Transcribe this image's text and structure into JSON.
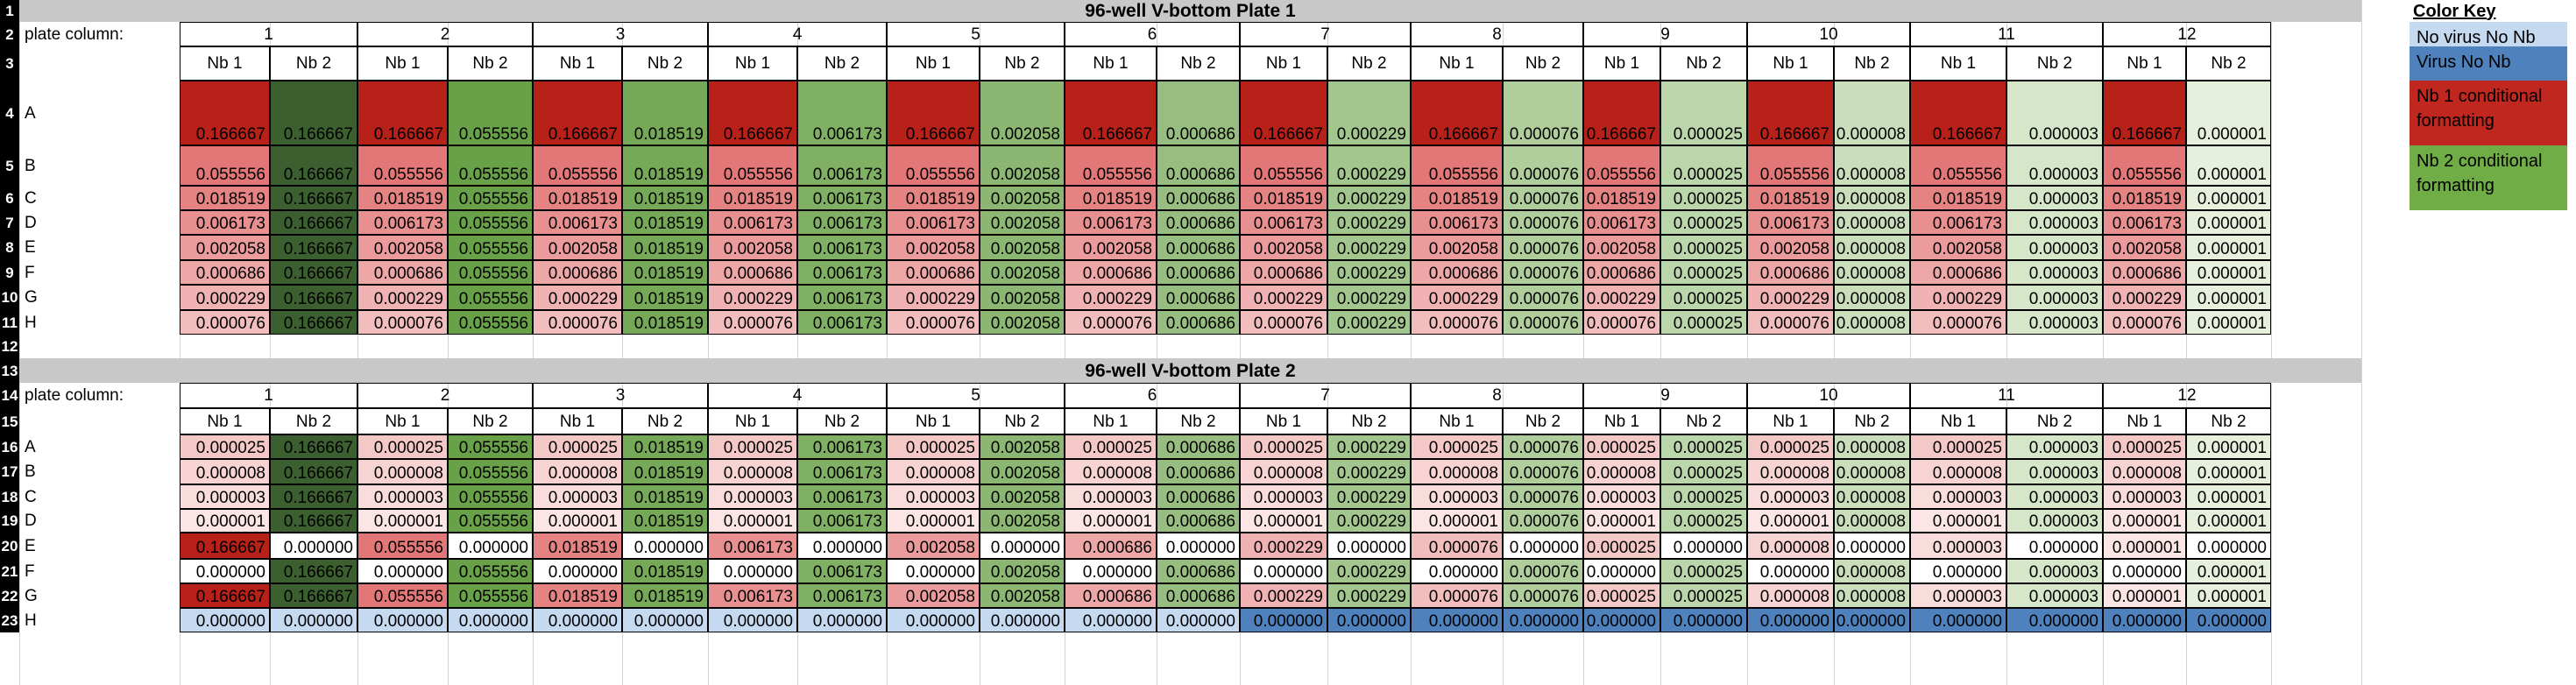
{
  "row_numbers": [
    "1",
    "2",
    "3",
    "4",
    "5",
    "6",
    "7",
    "8",
    "9",
    "10",
    "11",
    "12",
    "13",
    "14",
    "15",
    "16",
    "17",
    "18",
    "19",
    "20",
    "21",
    "22",
    "23"
  ],
  "plate_column_label": "plate column:",
  "column_numbers": [
    "1",
    "2",
    "3",
    "4",
    "5",
    "6",
    "7",
    "8",
    "9",
    "10",
    "11",
    "12"
  ],
  "subcols": [
    "Nb 1",
    "Nb 2"
  ],
  "key": {
    "title": "Color Key",
    "items": [
      {
        "label": "No virus No Nb",
        "color": "#c5d9f1"
      },
      {
        "label": "Virus No Nb",
        "color": "#4f81bd"
      },
      {
        "label": "Nb 1 conditional formatting",
        "color": "#c0271f"
      },
      {
        "label": "Nb 2 conditional formatting",
        "color": "#70ad47"
      }
    ]
  },
  "plates": [
    {
      "title": "96-well V-bottom Plate 1",
      "rows": [
        {
          "label": "A",
          "cells": [
            [
              "0.166667",
              "0.166667"
            ],
            [
              "0.166667",
              "0.055556"
            ],
            [
              "0.166667",
              "0.018519"
            ],
            [
              "0.166667",
              "0.006173"
            ],
            [
              "0.166667",
              "0.002058"
            ],
            [
              "0.166667",
              "0.000686"
            ],
            [
              "0.166667",
              "0.000229"
            ],
            [
              "0.166667",
              "0.000076"
            ],
            [
              "0.166667",
              "0.000025"
            ],
            [
              "0.166667",
              "0.000008"
            ],
            [
              "0.166667",
              "0.000003"
            ],
            [
              "0.166667",
              "0.000001"
            ]
          ]
        },
        {
          "label": "B",
          "cells": [
            [
              "0.055556",
              "0.166667"
            ],
            [
              "0.055556",
              "0.055556"
            ],
            [
              "0.055556",
              "0.018519"
            ],
            [
              "0.055556",
              "0.006173"
            ],
            [
              "0.055556",
              "0.002058"
            ],
            [
              "0.055556",
              "0.000686"
            ],
            [
              "0.055556",
              "0.000229"
            ],
            [
              "0.055556",
              "0.000076"
            ],
            [
              "0.055556",
              "0.000025"
            ],
            [
              "0.055556",
              "0.000008"
            ],
            [
              "0.055556",
              "0.000003"
            ],
            [
              "0.055556",
              "0.000001"
            ]
          ]
        },
        {
          "label": "C",
          "cells": [
            [
              "0.018519",
              "0.166667"
            ],
            [
              "0.018519",
              "0.055556"
            ],
            [
              "0.018519",
              "0.018519"
            ],
            [
              "0.018519",
              "0.006173"
            ],
            [
              "0.018519",
              "0.002058"
            ],
            [
              "0.018519",
              "0.000686"
            ],
            [
              "0.018519",
              "0.000229"
            ],
            [
              "0.018519",
              "0.000076"
            ],
            [
              "0.018519",
              "0.000025"
            ],
            [
              "0.018519",
              "0.000008"
            ],
            [
              "0.018519",
              "0.000003"
            ],
            [
              "0.018519",
              "0.000001"
            ]
          ]
        },
        {
          "label": "D",
          "cells": [
            [
              "0.006173",
              "0.166667"
            ],
            [
              "0.006173",
              "0.055556"
            ],
            [
              "0.006173",
              "0.018519"
            ],
            [
              "0.006173",
              "0.006173"
            ],
            [
              "0.006173",
              "0.002058"
            ],
            [
              "0.006173",
              "0.000686"
            ],
            [
              "0.006173",
              "0.000229"
            ],
            [
              "0.006173",
              "0.000076"
            ],
            [
              "0.006173",
              "0.000025"
            ],
            [
              "0.006173",
              "0.000008"
            ],
            [
              "0.006173",
              "0.000003"
            ],
            [
              "0.006173",
              "0.000001"
            ]
          ]
        },
        {
          "label": "E",
          "cells": [
            [
              "0.002058",
              "0.166667"
            ],
            [
              "0.002058",
              "0.055556"
            ],
            [
              "0.002058",
              "0.018519"
            ],
            [
              "0.002058",
              "0.006173"
            ],
            [
              "0.002058",
              "0.002058"
            ],
            [
              "0.002058",
              "0.000686"
            ],
            [
              "0.002058",
              "0.000229"
            ],
            [
              "0.002058",
              "0.000076"
            ],
            [
              "0.002058",
              "0.000025"
            ],
            [
              "0.002058",
              "0.000008"
            ],
            [
              "0.002058",
              "0.000003"
            ],
            [
              "0.002058",
              "0.000001"
            ]
          ]
        },
        {
          "label": "F",
          "cells": [
            [
              "0.000686",
              "0.166667"
            ],
            [
              "0.000686",
              "0.055556"
            ],
            [
              "0.000686",
              "0.018519"
            ],
            [
              "0.000686",
              "0.006173"
            ],
            [
              "0.000686",
              "0.002058"
            ],
            [
              "0.000686",
              "0.000686"
            ],
            [
              "0.000686",
              "0.000229"
            ],
            [
              "0.000686",
              "0.000076"
            ],
            [
              "0.000686",
              "0.000025"
            ],
            [
              "0.000686",
              "0.000008"
            ],
            [
              "0.000686",
              "0.000003"
            ],
            [
              "0.000686",
              "0.000001"
            ]
          ]
        },
        {
          "label": "G",
          "cells": [
            [
              "0.000229",
              "0.166667"
            ],
            [
              "0.000229",
              "0.055556"
            ],
            [
              "0.000229",
              "0.018519"
            ],
            [
              "0.000229",
              "0.006173"
            ],
            [
              "0.000229",
              "0.002058"
            ],
            [
              "0.000229",
              "0.000686"
            ],
            [
              "0.000229",
              "0.000229"
            ],
            [
              "0.000229",
              "0.000076"
            ],
            [
              "0.000229",
              "0.000025"
            ],
            [
              "0.000229",
              "0.000008"
            ],
            [
              "0.000229",
              "0.000003"
            ],
            [
              "0.000229",
              "0.000001"
            ]
          ]
        },
        {
          "label": "H",
          "cells": [
            [
              "0.000076",
              "0.166667"
            ],
            [
              "0.000076",
              "0.055556"
            ],
            [
              "0.000076",
              "0.018519"
            ],
            [
              "0.000076",
              "0.006173"
            ],
            [
              "0.000076",
              "0.002058"
            ],
            [
              "0.000076",
              "0.000686"
            ],
            [
              "0.000076",
              "0.000229"
            ],
            [
              "0.000076",
              "0.000076"
            ],
            [
              "0.000076",
              "0.000025"
            ],
            [
              "0.000076",
              "0.000008"
            ],
            [
              "0.000076",
              "0.000003"
            ],
            [
              "0.000076",
              "0.000001"
            ]
          ]
        }
      ]
    },
    {
      "title": "96-well V-bottom Plate 2",
      "rows": [
        {
          "label": "A",
          "cells": [
            [
              "0.000025",
              "0.166667"
            ],
            [
              "0.000025",
              "0.055556"
            ],
            [
              "0.000025",
              "0.018519"
            ],
            [
              "0.000025",
              "0.006173"
            ],
            [
              "0.000025",
              "0.002058"
            ],
            [
              "0.000025",
              "0.000686"
            ],
            [
              "0.000025",
              "0.000229"
            ],
            [
              "0.000025",
              "0.000076"
            ],
            [
              "0.000025",
              "0.000025"
            ],
            [
              "0.000025",
              "0.000008"
            ],
            [
              "0.000025",
              "0.000003"
            ],
            [
              "0.000025",
              "0.000001"
            ]
          ]
        },
        {
          "label": "B",
          "cells": [
            [
              "0.000008",
              "0.166667"
            ],
            [
              "0.000008",
              "0.055556"
            ],
            [
              "0.000008",
              "0.018519"
            ],
            [
              "0.000008",
              "0.006173"
            ],
            [
              "0.000008",
              "0.002058"
            ],
            [
              "0.000008",
              "0.000686"
            ],
            [
              "0.000008",
              "0.000229"
            ],
            [
              "0.000008",
              "0.000076"
            ],
            [
              "0.000008",
              "0.000025"
            ],
            [
              "0.000008",
              "0.000008"
            ],
            [
              "0.000008",
              "0.000003"
            ],
            [
              "0.000008",
              "0.000001"
            ]
          ]
        },
        {
          "label": "C",
          "cells": [
            [
              "0.000003",
              "0.166667"
            ],
            [
              "0.000003",
              "0.055556"
            ],
            [
              "0.000003",
              "0.018519"
            ],
            [
              "0.000003",
              "0.006173"
            ],
            [
              "0.000003",
              "0.002058"
            ],
            [
              "0.000003",
              "0.000686"
            ],
            [
              "0.000003",
              "0.000229"
            ],
            [
              "0.000003",
              "0.000076"
            ],
            [
              "0.000003",
              "0.000025"
            ],
            [
              "0.000003",
              "0.000008"
            ],
            [
              "0.000003",
              "0.000003"
            ],
            [
              "0.000003",
              "0.000001"
            ]
          ]
        },
        {
          "label": "D",
          "cells": [
            [
              "0.000001",
              "0.166667"
            ],
            [
              "0.000001",
              "0.055556"
            ],
            [
              "0.000001",
              "0.018519"
            ],
            [
              "0.000001",
              "0.006173"
            ],
            [
              "0.000001",
              "0.002058"
            ],
            [
              "0.000001",
              "0.000686"
            ],
            [
              "0.000001",
              "0.000229"
            ],
            [
              "0.000001",
              "0.000076"
            ],
            [
              "0.000001",
              "0.000025"
            ],
            [
              "0.000001",
              "0.000008"
            ],
            [
              "0.000001",
              "0.000003"
            ],
            [
              "0.000001",
              "0.000001"
            ]
          ]
        },
        {
          "label": "E",
          "cells": [
            [
              "0.166667",
              "0.000000"
            ],
            [
              "0.055556",
              "0.000000"
            ],
            [
              "0.018519",
              "0.000000"
            ],
            [
              "0.006173",
              "0.000000"
            ],
            [
              "0.002058",
              "0.000000"
            ],
            [
              "0.000686",
              "0.000000"
            ],
            [
              "0.000229",
              "0.000000"
            ],
            [
              "0.000076",
              "0.000000"
            ],
            [
              "0.000025",
              "0.000000"
            ],
            [
              "0.000008",
              "0.000000"
            ],
            [
              "0.000003",
              "0.000000"
            ],
            [
              "0.000001",
              "0.000000"
            ]
          ]
        },
        {
          "label": "F",
          "cells": [
            [
              "0.000000",
              "0.166667"
            ],
            [
              "0.000000",
              "0.055556"
            ],
            [
              "0.000000",
              "0.018519"
            ],
            [
              "0.000000",
              "0.006173"
            ],
            [
              "0.000000",
              "0.002058"
            ],
            [
              "0.000000",
              "0.000686"
            ],
            [
              "0.000000",
              "0.000229"
            ],
            [
              "0.000000",
              "0.000076"
            ],
            [
              "0.000000",
              "0.000025"
            ],
            [
              "0.000000",
              "0.000008"
            ],
            [
              "0.000000",
              "0.000003"
            ],
            [
              "0.000000",
              "0.000001"
            ]
          ]
        },
        {
          "label": "G",
          "cells": [
            [
              "0.166667",
              "0.166667"
            ],
            [
              "0.055556",
              "0.055556"
            ],
            [
              "0.018519",
              "0.018519"
            ],
            [
              "0.006173",
              "0.006173"
            ],
            [
              "0.002058",
              "0.002058"
            ],
            [
              "0.000686",
              "0.000686"
            ],
            [
              "0.000229",
              "0.000229"
            ],
            [
              "0.000076",
              "0.000076"
            ],
            [
              "0.000025",
              "0.000025"
            ],
            [
              "0.000008",
              "0.000008"
            ],
            [
              "0.000003",
              "0.000003"
            ],
            [
              "0.000001",
              "0.000001"
            ]
          ]
        },
        {
          "label": "H",
          "cells": [
            [
              "0.000000",
              "0.000000"
            ],
            [
              "0.000000",
              "0.000000"
            ],
            [
              "0.000000",
              "0.000000"
            ],
            [
              "0.000000",
              "0.000000"
            ],
            [
              "0.000000",
              "0.000000"
            ],
            [
              "0.000000",
              "0.000000"
            ],
            [
              "0.000000",
              "0.000000"
            ],
            [
              "0.000000",
              "0.000000"
            ],
            [
              "0.000000",
              "0.000000"
            ],
            [
              "0.000000",
              "0.000000"
            ],
            [
              "0.000000",
              "0.000000"
            ],
            [
              "0.000000",
              "0.000000"
            ]
          ]
        }
      ]
    }
  ],
  "special_fills": {
    "no_virus_no_nb": "#c5d9f1",
    "virus_no_nb": "#4f81bd"
  }
}
